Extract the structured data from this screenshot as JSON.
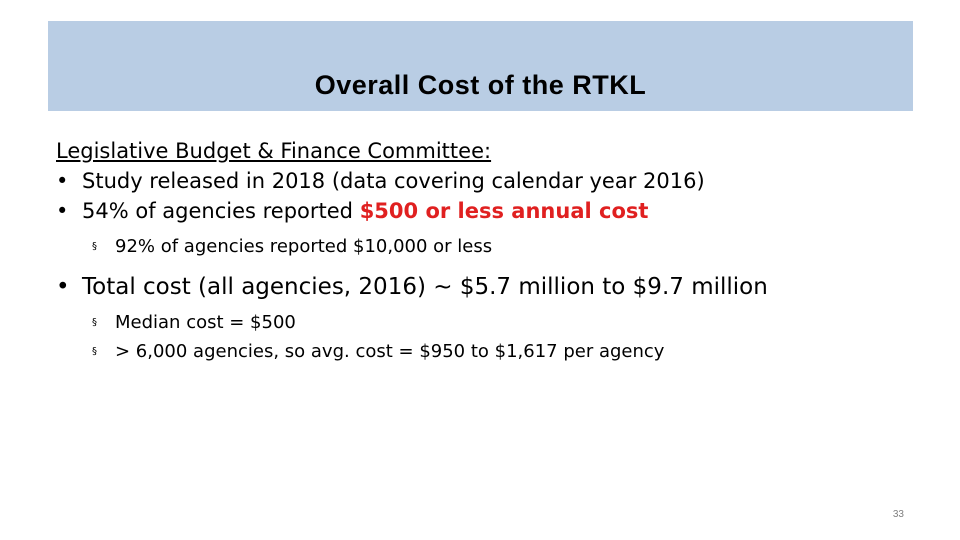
{
  "slide": {
    "title": "Overall Cost of the RTKL",
    "heading": "Legislative Budget & Finance Committee:",
    "bullet_char": "•",
    "sub_bullet_char": "§",
    "items": [
      {
        "text": "Study released in 2018 (data covering calendar year 2016)"
      },
      {
        "text": "54% of agencies reported ",
        "highlight": "$500 or less annual cost"
      }
    ],
    "sub_items_1": [
      {
        "text": "92% of agencies reported $10,000 or less"
      }
    ],
    "items_2": [
      {
        "text": "Total cost (all agencies, 2016) ~ $5.7 million to $9.7 million"
      }
    ],
    "sub_items_2": [
      {
        "text": "Median cost = $500"
      },
      {
        "text": "> 6,000 agencies, so avg. cost = $950 to $1,617 per agency"
      }
    ],
    "page_number": "33"
  },
  "colors": {
    "title_band": "#b9cde4",
    "highlight": "#e02020",
    "page_number": "#7f7f7f"
  }
}
